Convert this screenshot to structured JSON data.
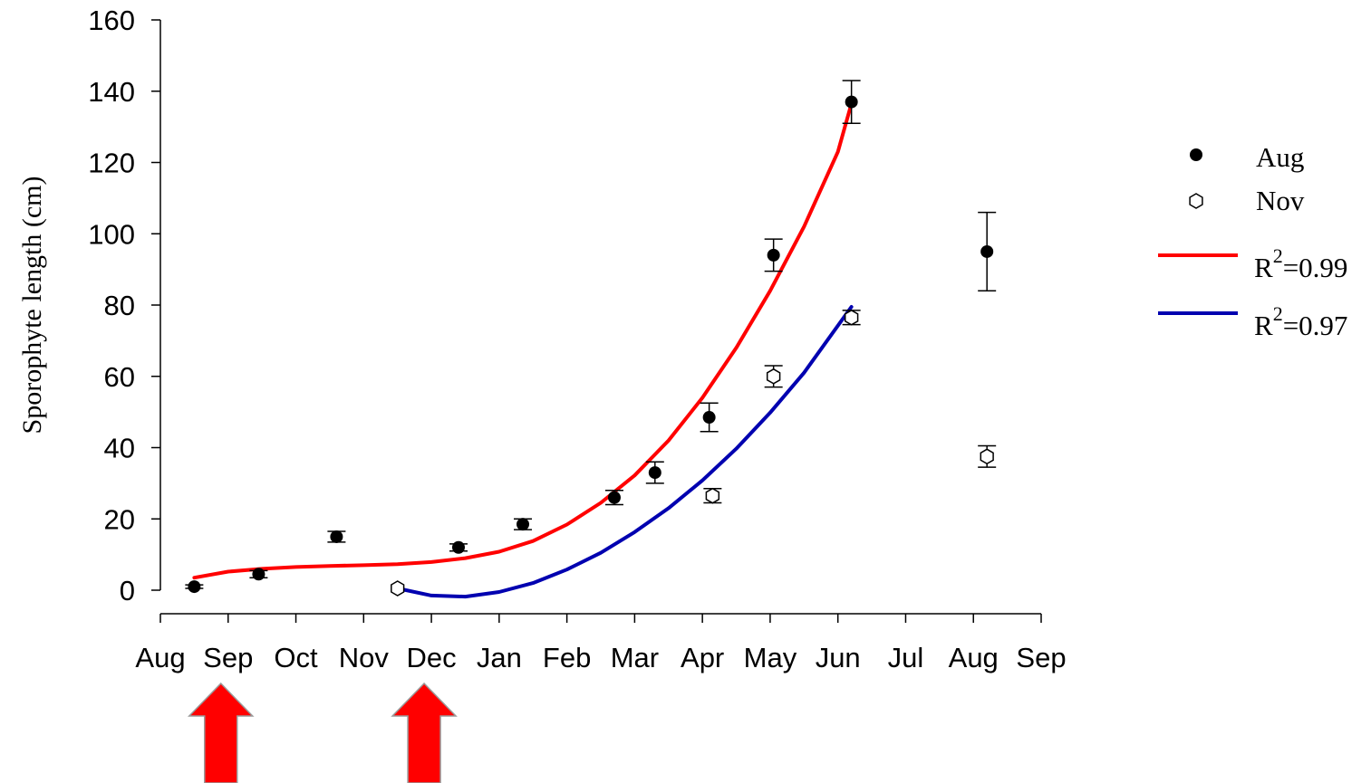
{
  "chart_data": {
    "type": "scatter",
    "title": "",
    "xlabel": "",
    "ylabel": "Sporophyte length (cm)",
    "ylim": [
      0,
      160
    ],
    "yticks": [
      0,
      20,
      40,
      60,
      80,
      100,
      120,
      140,
      160
    ],
    "xticks": [
      "Aug",
      "Sep",
      "Oct",
      "Nov",
      "Dec",
      "Jan",
      "Feb",
      "Mar",
      "Apr",
      "May",
      "Jun",
      "Jul",
      "Aug",
      "Sep"
    ],
    "series": [
      {
        "name": "Aug",
        "marker": "filled-circle",
        "color": "#000000",
        "points": [
          {
            "x": 0.5,
            "y": 1,
            "err": 0.5
          },
          {
            "x": 1.45,
            "y": 4.5,
            "err": 1
          },
          {
            "x": 2.6,
            "y": 15,
            "err": 1.5
          },
          {
            "x": 4.4,
            "y": 12,
            "err": 1
          },
          {
            "x": 5.35,
            "y": 18.5,
            "err": 1.5
          },
          {
            "x": 6.7,
            "y": 26,
            "err": 2
          },
          {
            "x": 7.3,
            "y": 33,
            "err": 3
          },
          {
            "x": 8.1,
            "y": 48.5,
            "err": 4
          },
          {
            "x": 9.05,
            "y": 94,
            "err": 4.5
          },
          {
            "x": 10.2,
            "y": 137,
            "err": 6
          },
          {
            "x": 12.2,
            "y": 95,
            "err": 11
          }
        ]
      },
      {
        "name": "Nov",
        "marker": "open-hexagon",
        "color": "#000000",
        "points": [
          {
            "x": 3.5,
            "y": 0.5,
            "err": 0
          },
          {
            "x": 8.15,
            "y": 26.5,
            "err": 2
          },
          {
            "x": 9.05,
            "y": 60,
            "err": 3
          },
          {
            "x": 10.2,
            "y": 76.5,
            "err": 2
          },
          {
            "x": 12.2,
            "y": 37.5,
            "err": 3
          }
        ]
      },
      {
        "name": "R2=0.99",
        "legend_main": "R",
        "legend_sup": "2",
        "legend_rest": "=0.99",
        "line": "fit",
        "color": "#ff0000",
        "x": [
          0.5,
          1.0,
          1.5,
          2.0,
          2.5,
          3.0,
          3.5,
          4.0,
          4.5,
          5.0,
          5.5,
          6.0,
          6.5,
          7.0,
          7.5,
          8.0,
          8.5,
          9.0,
          9.5,
          10.0,
          10.2
        ],
        "y": [
          3.5,
          5.2,
          6.0,
          6.5,
          6.8,
          7.0,
          7.3,
          7.9,
          9.0,
          10.8,
          13.8,
          18.4,
          24.5,
          32.2,
          42.0,
          54.0,
          68.0,
          84.0,
          102.0,
          123.0,
          136.5
        ]
      },
      {
        "name": "R2=0.97",
        "legend_main": "R",
        "legend_sup": "2",
        "legend_rest": "=0.97",
        "line": "fit",
        "color": "#0000b0",
        "x": [
          3.5,
          4.0,
          4.5,
          5.0,
          5.5,
          6.0,
          6.5,
          7.0,
          7.5,
          8.0,
          8.5,
          9.0,
          9.5,
          10.2
        ],
        "y": [
          0.5,
          -1.5,
          -1.8,
          -0.5,
          2.0,
          5.8,
          10.5,
          16.3,
          23.0,
          30.8,
          39.7,
          49.8,
          61.0,
          79.5
        ]
      }
    ],
    "annotations": [
      {
        "type": "arrow",
        "direction": "up",
        "color": "#ff0000",
        "at_tick": "Sep"
      },
      {
        "type": "arrow",
        "direction": "up",
        "color": "#ff0000",
        "at_tick": "Dec"
      }
    ],
    "grid": false,
    "legend_position": "right"
  }
}
